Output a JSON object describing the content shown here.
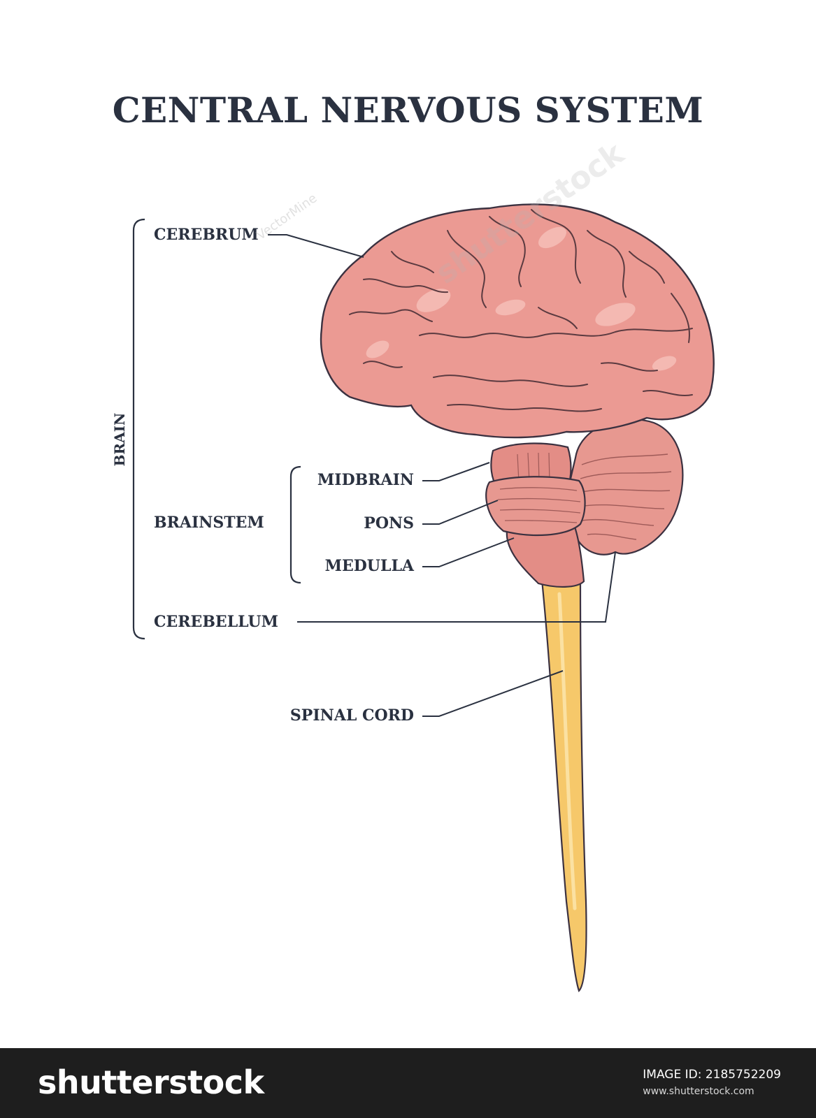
{
  "title": "CENTRAL NERVOUS SYSTEM",
  "labels": {
    "brain": "BRAIN",
    "cerebrum": "CEREBRUM",
    "brainstem": "BRAINSTEM",
    "midbrain": "MIDBRAIN",
    "pons": "PONS",
    "medulla": "MEDULLA",
    "cerebellum": "CEREBELLUM",
    "spinal_cord": "SPINAL CORD"
  },
  "watermarks": {
    "stock": "shutterstock",
    "author": "VectorMine"
  },
  "footer": {
    "logo": "shutterstock",
    "image_id": "IMAGE ID: 2185752209",
    "site": "www.shutterstock.com"
  },
  "colors": {
    "brain_fill": "#eb9a93",
    "brain_outline": "#3b3140",
    "spinal_fill": "#f6c86a",
    "text": "#2a3140"
  }
}
